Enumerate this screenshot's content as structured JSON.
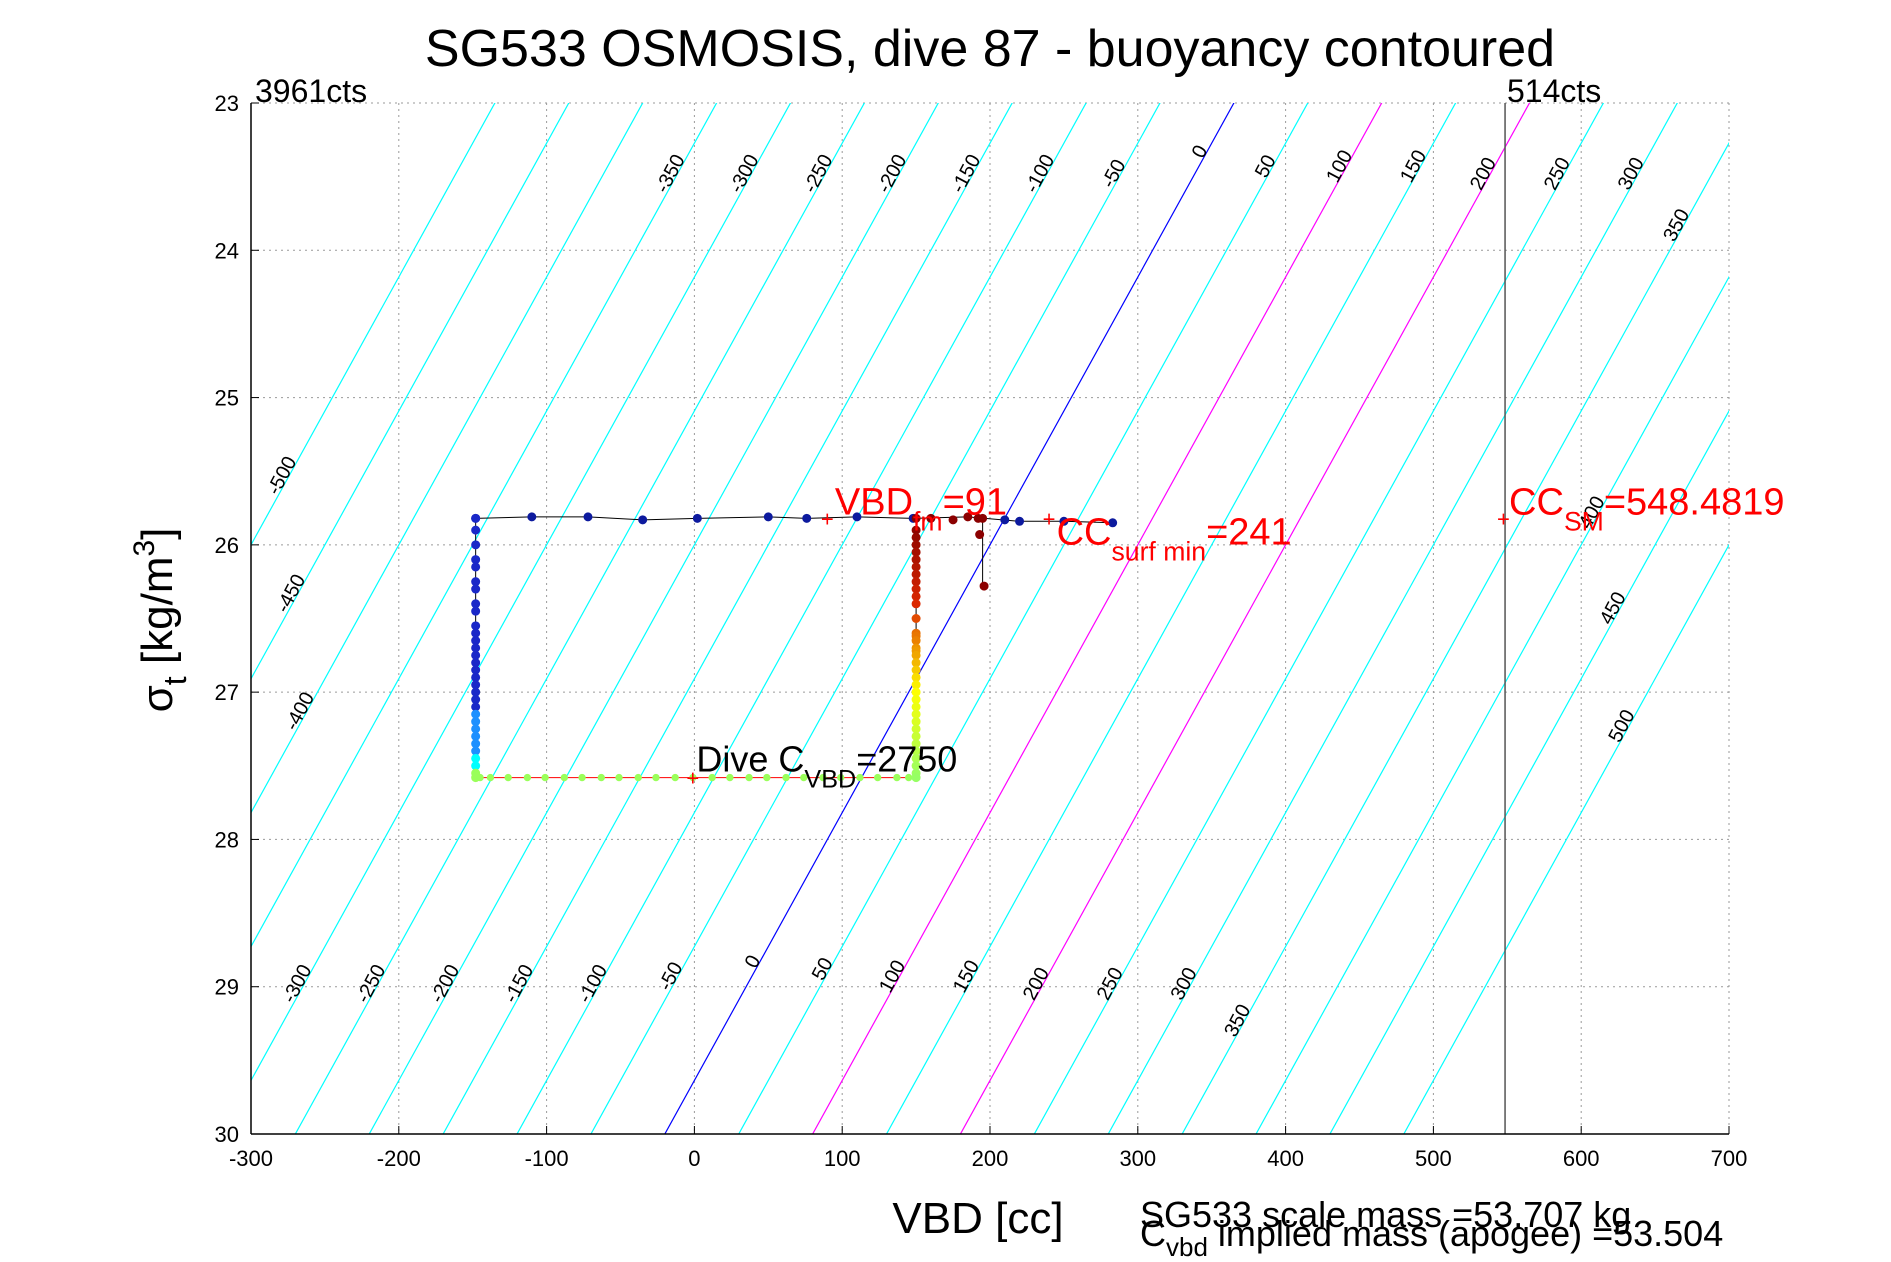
{
  "chart_data": {
    "type": "scatter",
    "title": "SG533 OSMOSIS, dive 87 - buoyancy contoured",
    "xlabel": "VBD [cc]",
    "ylabel": {
      "main": "σ",
      "sub": "t",
      "unit": " [kg/m",
      "sup": "3",
      "close": "]"
    },
    "xlim": [
      -300,
      700
    ],
    "ylim": [
      23,
      30
    ],
    "y_reversed": true,
    "grid": true,
    "x_ticks": [
      -300,
      -200,
      -100,
      0,
      100,
      200,
      300,
      400,
      500,
      600,
      700
    ],
    "y_ticks": [
      23,
      24,
      25,
      26,
      27,
      28,
      29,
      30
    ],
    "corner_labels": {
      "left": "3961cts",
      "right": "514cts"
    },
    "vertical_line_x": 548.4819,
    "contours": {
      "levels": [
        -500,
        -450,
        -400,
        -350,
        -300,
        -250,
        -200,
        -150,
        -100,
        -50,
        0,
        50,
        100,
        150,
        200,
        250,
        300,
        350,
        400,
        450,
        500
      ],
      "magenta_levels": [
        100,
        200
      ],
      "zero_level": 0,
      "x_at_rho_23": 365,
      "x_per_rho": -50,
      "x_per_level": 25,
      "top_labels": [
        {
          "level": -350,
          "y": 23.5
        },
        {
          "level": -300,
          "y": 23.5
        },
        {
          "level": -250,
          "y": 23.5
        },
        {
          "level": -200,
          "y": 23.5
        },
        {
          "level": -150,
          "y": 23.5
        },
        {
          "level": -100,
          "y": 23.5
        },
        {
          "level": -50,
          "y": 23.5
        },
        {
          "level": 0,
          "y": 23.35
        },
        {
          "level": 50,
          "y": 23.45
        },
        {
          "level": 100,
          "y": 23.45
        },
        {
          "level": 150,
          "y": 23.45
        },
        {
          "level": 200,
          "y": 23.5
        },
        {
          "level": 250,
          "y": 23.5
        },
        {
          "level": 300,
          "y": 23.5
        },
        {
          "level": 350,
          "y": 23.85
        },
        {
          "level": 400,
          "y": 25.8
        },
        {
          "level": 450,
          "y": 26.45
        },
        {
          "level": 500,
          "y": 27.25
        },
        {
          "level": -500,
          "y": 25.55
        },
        {
          "level": -450,
          "y": 26.35
        },
        {
          "level": -400,
          "y": 27.15
        }
      ],
      "bottom_labels": [
        {
          "level": -300,
          "y": 29.0
        },
        {
          "level": -250,
          "y": 29.0
        },
        {
          "level": -200,
          "y": 29.0
        },
        {
          "level": -150,
          "y": 29.0
        },
        {
          "level": -100,
          "y": 29.0
        },
        {
          "level": -50,
          "y": 28.95
        },
        {
          "level": 0,
          "y": 28.85
        },
        {
          "level": 50,
          "y": 28.9
        },
        {
          "level": 100,
          "y": 28.95
        },
        {
          "level": 150,
          "y": 28.95
        },
        {
          "level": 200,
          "y": 29.0
        },
        {
          "level": 250,
          "y": 29.0
        },
        {
          "level": 300,
          "y": 29.0
        },
        {
          "level": 350,
          "y": 29.25
        }
      ]
    },
    "series": [
      {
        "color_mode": "upper_blue",
        "line_points": [
          [
            -148,
            25.82
          ],
          [
            -110,
            25.81
          ],
          [
            -72,
            25.81
          ],
          [
            -35,
            25.83
          ],
          [
            2,
            25.82
          ],
          [
            50,
            25.81
          ],
          [
            76,
            25.82
          ],
          [
            110,
            25.81
          ],
          [
            148,
            25.82
          ],
          [
            185,
            25.81
          ],
          [
            220,
            25.84
          ],
          [
            250,
            25.84
          ],
          [
            283,
            25.85
          ]
        ],
        "marker_x": [
          -148,
          -110,
          -72,
          -35,
          2,
          50,
          76,
          110,
          148,
          160,
          175,
          185,
          192,
          210,
          220,
          250,
          283
        ],
        "marker_y": [
          25.82,
          25.81,
          25.81,
          25.83,
          25.82,
          25.81,
          25.82,
          25.81,
          25.82,
          25.82,
          25.83,
          25.81,
          25.82,
          25.83,
          25.84,
          25.84,
          25.85
        ]
      },
      {
        "color_mode": "left_column",
        "x": -148,
        "y_top": 25.82,
        "y_bottom": 27.58,
        "marker_y": [
          25.82,
          25.9,
          26.0,
          26.1,
          26.15,
          26.25,
          26.3,
          26.4,
          26.45,
          26.55,
          26.6,
          26.65,
          26.7,
          26.75,
          26.8,
          26.85,
          26.9,
          26.95,
          27.0,
          27.05,
          27.1,
          27.15,
          27.2,
          27.25,
          27.3,
          27.35,
          27.4,
          27.45,
          27.5,
          27.55,
          27.58
        ]
      },
      {
        "color_mode": "bottom_green",
        "y": 27.58,
        "x_from": -145,
        "x_to": 150,
        "marker_x": [
          -145,
          -138,
          -126,
          -113,
          -101,
          -88,
          -76,
          -63,
          -51,
          -38,
          -26,
          -13,
          -1,
          12,
          24,
          37,
          49,
          62,
          74,
          87,
          99,
          112,
          124,
          137,
          145,
          150
        ]
      },
      {
        "color_mode": "right_column",
        "x": 150,
        "y_top": 25.82,
        "y_bottom": 27.58,
        "marker_y": [
          25.82,
          25.9,
          25.95,
          26.0,
          26.05,
          26.1,
          26.15,
          26.2,
          26.25,
          26.3,
          26.35,
          26.4,
          26.5,
          26.6,
          26.62,
          26.65,
          26.7,
          26.72,
          26.75,
          26.8,
          26.85,
          26.9,
          26.95,
          27.0,
          27.05,
          27.1,
          27.15,
          27.2,
          27.25,
          27.3,
          27.35,
          27.4,
          27.45,
          27.5,
          27.55,
          27.58
        ]
      },
      {
        "color_mode": "dark_red_tail",
        "line_points": [
          [
            195,
            25.82
          ],
          [
            195,
            26.1
          ],
          [
            195,
            26.28
          ]
        ],
        "marker_x": [
          195,
          193,
          196
        ],
        "marker_y": [
          25.82,
          25.93,
          26.28
        ]
      }
    ],
    "annotations": {
      "vbd_fm": {
        "text": "VBD",
        "sub": "fm",
        "value": "=91",
        "x": 91,
        "y": 25.82
      },
      "cc_surf_min": {
        "text": "CC",
        "sub": "surf min",
        "value": "=241",
        "x": 241,
        "y": 25.82
      },
      "cc_sm": {
        "text": "CC",
        "sub": "SM",
        "value": "=548.4819",
        "x": 548.4819,
        "y": 25.82
      },
      "dive_cvbd": {
        "text": "Dive C",
        "sub": "VBD",
        "value": "=2750",
        "x": 0,
        "y": 27.58
      }
    },
    "footer": {
      "scale_mass": "SG533 scale mass =53.707 kg",
      "implied_mass": {
        "text": "C",
        "sub": "vbd",
        "rest": " implied mass (apogee) =53.504"
      }
    }
  }
}
